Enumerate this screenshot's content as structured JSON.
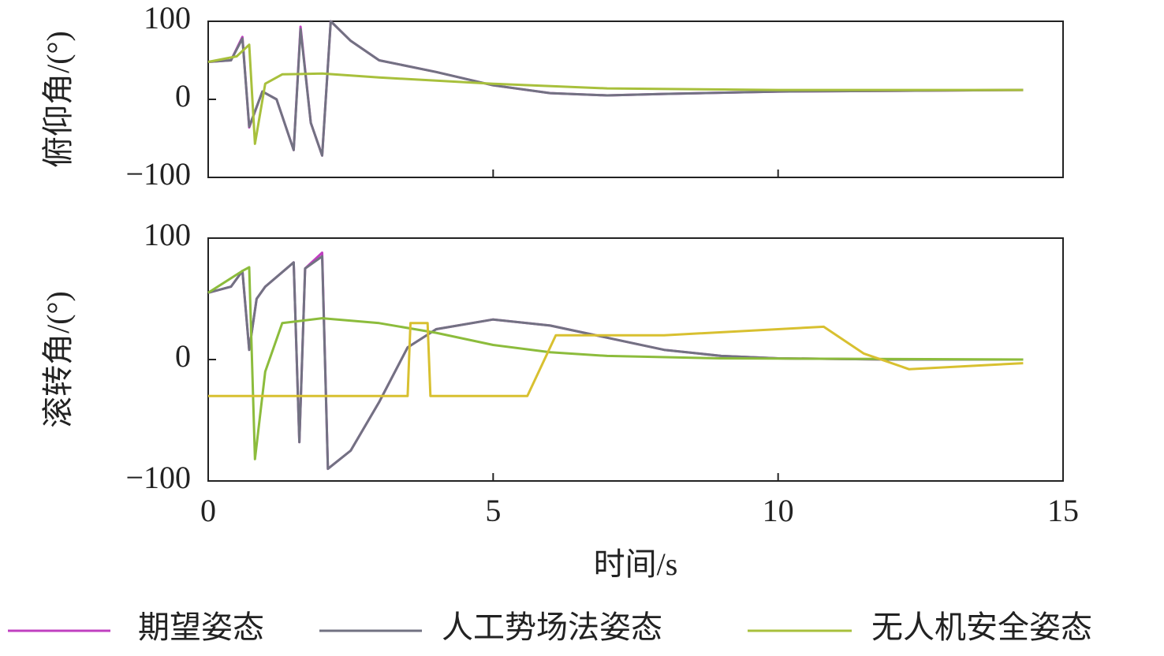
{
  "chart_data": [
    {
      "type": "line",
      "ylabel": "俯仰角/(°)",
      "xlim": [
        0,
        15
      ],
      "xticks": [
        0,
        5,
        10,
        15
      ],
      "ylim": [
        -100,
        100
      ],
      "yticks": [
        {
          "value": -100,
          "label": "−100"
        },
        0,
        100
      ],
      "series": [
        {
          "name": "期望姿态",
          "color": "#c040c0",
          "x": [
            0,
            0.4,
            0.6,
            0.72,
            0.95,
            1.2,
            1.5,
            1.62,
            1.8,
            2.0,
            2.15,
            2.5,
            3,
            4,
            5,
            6,
            7,
            8,
            10,
            14.3
          ],
          "values": [
            48,
            50,
            80,
            -36,
            10,
            0,
            -65,
            93,
            -30,
            -72,
            100,
            75,
            50,
            35,
            18,
            8,
            5,
            7,
            10,
            12
          ]
        },
        {
          "name": "人工势场法姿态",
          "color": "#727282",
          "x": [
            0,
            0.4,
            0.6,
            0.72,
            0.95,
            1.2,
            1.5,
            1.62,
            1.8,
            2.0,
            2.15,
            2.5,
            3,
            4,
            5,
            6,
            7,
            8,
            10,
            14.3
          ],
          "values": [
            48,
            50,
            78,
            -35,
            10,
            0,
            -65,
            90,
            -30,
            -72,
            100,
            75,
            50,
            35,
            18,
            8,
            5,
            7,
            10,
            12
          ]
        },
        {
          "name": "无人机安全姿态",
          "color": "#a8c03c",
          "x": [
            0,
            0.5,
            0.72,
            0.82,
            1.0,
            1.3,
            2,
            3,
            5,
            7,
            10,
            14.3
          ],
          "values": [
            48,
            55,
            70,
            -57,
            20,
            32,
            33,
            28,
            20,
            14,
            12,
            12
          ]
        }
      ]
    },
    {
      "type": "line",
      "ylabel": "滚转角/(°)",
      "xlabel": "时间/s",
      "xlim": [
        0,
        15
      ],
      "xticks": [
        0,
        5,
        10,
        15
      ],
      "ylim": [
        -100,
        100
      ],
      "yticks": [
        {
          "value": -100,
          "label": "−100"
        },
        0,
        100
      ],
      "series": [
        {
          "color": "#c040c0",
          "x": [
            0,
            0.4,
            0.6,
            0.72,
            0.85,
            1.0,
            1.5,
            1.6,
            1.7,
            2.0,
            2.1,
            2.5,
            3,
            3.5,
            4,
            5,
            6,
            7,
            8,
            9,
            10,
            12,
            14.3
          ],
          "values": [
            55,
            60,
            73,
            8,
            50,
            60,
            80,
            -68,
            75,
            88,
            -90,
            -75,
            -35,
            10,
            25,
            33,
            28,
            18,
            8,
            3,
            1,
            0,
            0
          ]
        },
        {
          "color": "#727282",
          "x": [
            0,
            0.4,
            0.6,
            0.72,
            0.85,
            1.0,
            1.5,
            1.6,
            1.7,
            2.0,
            2.1,
            2.5,
            3,
            3.5,
            4,
            5,
            6,
            7,
            8,
            9,
            10,
            12,
            14.3
          ],
          "values": [
            55,
            60,
            73,
            8,
            50,
            60,
            80,
            -68,
            75,
            85,
            -90,
            -75,
            -35,
            10,
            25,
            33,
            28,
            18,
            8,
            3,
            1,
            0,
            0
          ]
        },
        {
          "color": "#8cbc3c",
          "x": [
            0,
            0.6,
            0.72,
            0.82,
            1.0,
            1.3,
            2,
            3,
            4,
            5,
            6,
            7,
            9,
            14.3
          ],
          "values": [
            55,
            73,
            76,
            -82,
            -10,
            30,
            34,
            30,
            22,
            12,
            6,
            3,
            1,
            0
          ]
        },
        {
          "color": "#d8c030",
          "x": [
            0,
            3.5,
            3.55,
            3.85,
            3.9,
            5.6,
            6.1,
            8,
            10.8,
            11.5,
            12.3,
            14.3
          ],
          "values": [
            -30,
            -30,
            30,
            30,
            -30,
            -30,
            20,
            20,
            27,
            5,
            -8,
            -3
          ]
        }
      ]
    }
  ]
}
